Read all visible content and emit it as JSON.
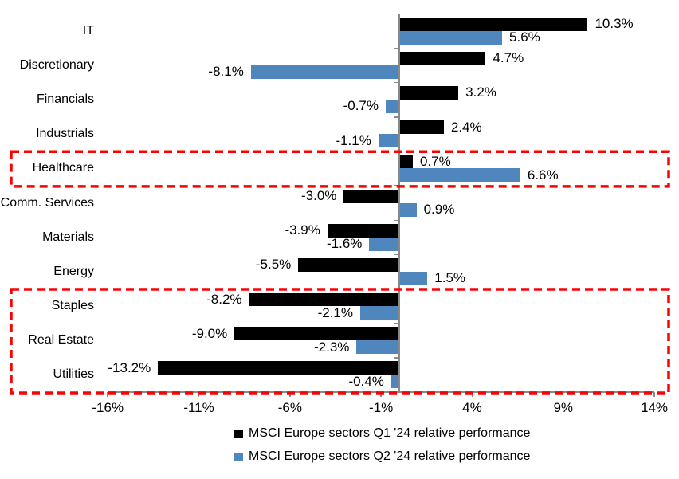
{
  "chart_data": {
    "type": "bar",
    "orientation": "horizontal",
    "title": "",
    "categories": [
      "IT",
      "Discretionary",
      "Financials",
      "Industrials",
      "Healthcare",
      "Comm. Services",
      "Materials",
      "Energy",
      "Staples",
      "Real Estate",
      "Utilities"
    ],
    "series": [
      {
        "name": "MSCI Europe sectors Q1 '24 relative performance",
        "color": "#000000",
        "values": [
          10.3,
          4.7,
          3.2,
          2.4,
          0.7,
          -3.0,
          -3.9,
          -5.5,
          -8.2,
          -9.0,
          -13.2
        ]
      },
      {
        "name": "MSCI Europe sectors Q2 '24 relative performance",
        "color": "#4F86BE",
        "values": [
          5.6,
          -8.1,
          -0.7,
          -1.1,
          6.6,
          0.9,
          -1.6,
          1.5,
          -2.1,
          -2.3,
          -0.4
        ]
      }
    ],
    "data_labels": [
      "10.3%",
      "5.6%",
      "4.7%",
      "-8.1%",
      "3.2%",
      "-0.7%",
      "2.4%",
      "-1.1%",
      "0.7%",
      "6.6%",
      "-3.0%",
      "0.9%",
      "-3.9%",
      "-1.6%",
      "-5.5%",
      "1.5%",
      "-8.2%",
      "-2.1%",
      "-9.0%",
      "-2.3%",
      "-13.2%",
      "-0.4%"
    ],
    "xlabel": "",
    "ylabel": "",
    "x_axis": {
      "min": -16,
      "max": 14,
      "tick_values": [
        -16,
        -11,
        -6,
        -1,
        4,
        9,
        14
      ],
      "tick_labels": [
        "-16%",
        "-11%",
        "-6%",
        "-1%",
        "4%",
        "9%",
        "14%"
      ]
    },
    "grid": false,
    "legend_position": "bottom",
    "axis_color": "#898989",
    "highlight_boxes": [
      {
        "from_category": "Healthcare",
        "to_category": "Healthcare",
        "color": "#FF0000",
        "style": "dashed"
      },
      {
        "from_category": "Staples",
        "to_category": "Utilities",
        "color": "#FF0000",
        "style": "dashed"
      }
    ]
  }
}
